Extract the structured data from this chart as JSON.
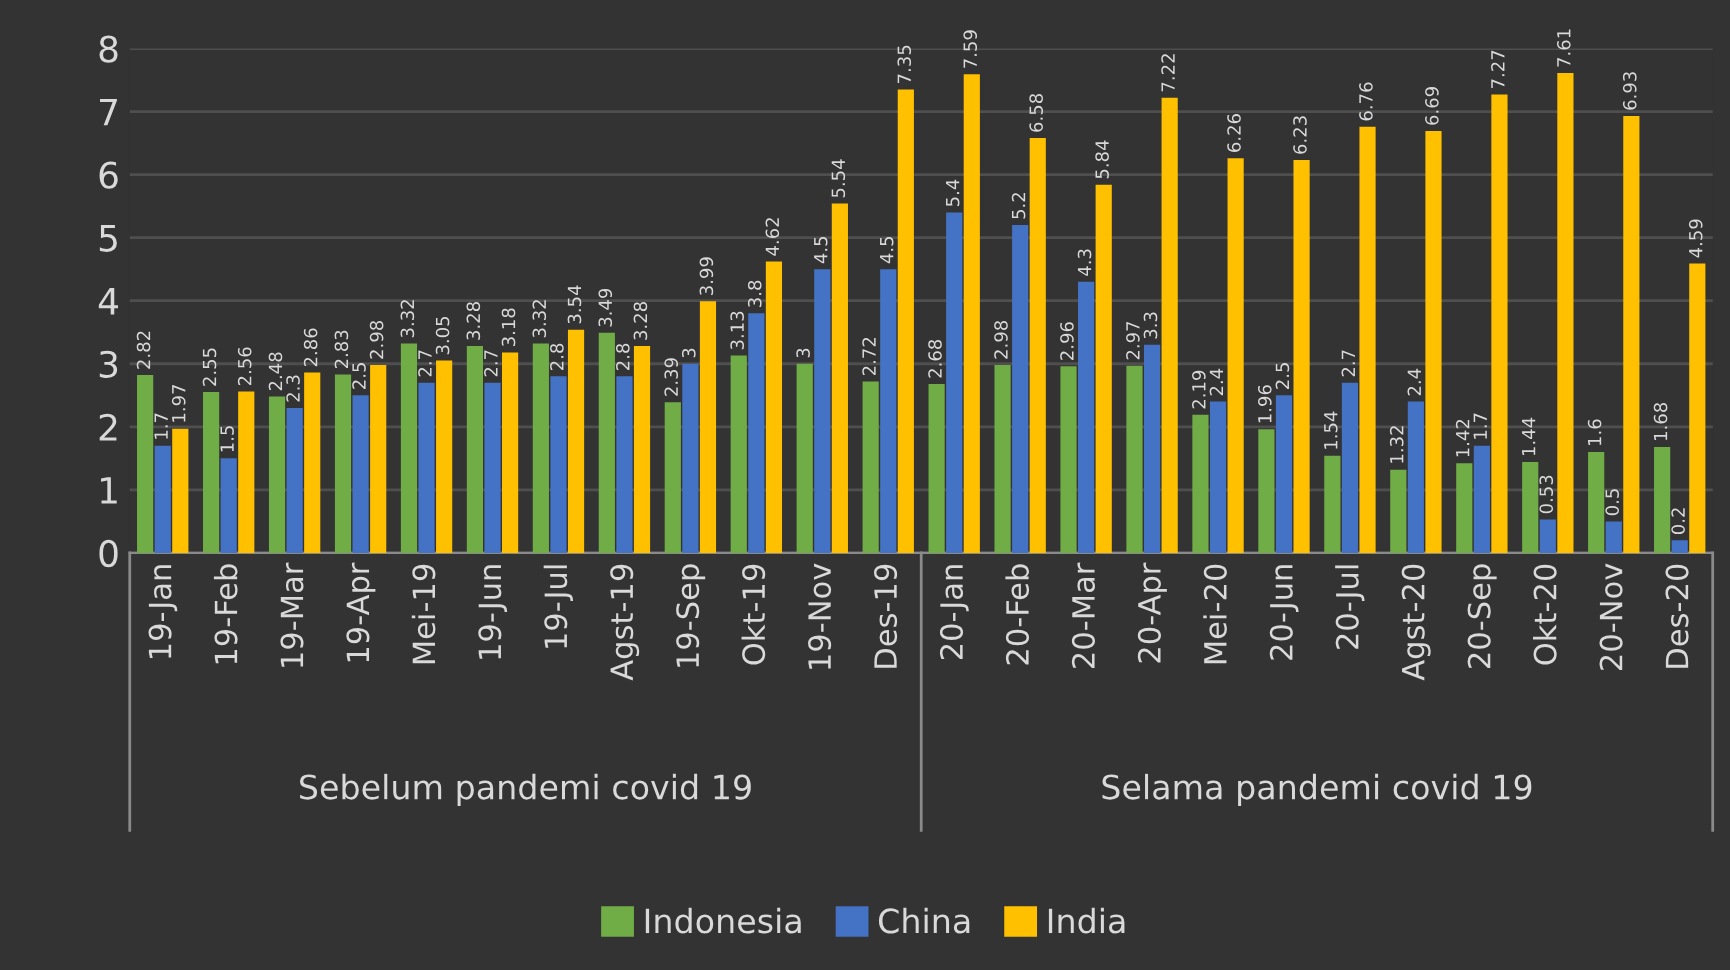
{
  "chart_data": {
    "type": "bar",
    "categories": [
      "19-Jan",
      "19-Feb",
      "19-Mar",
      "19-Apr",
      "Mei-19",
      "19-Jun",
      "19-Jul",
      "Agst-19",
      "19-Sep",
      "Okt-19",
      "19-Nov",
      "Des-19",
      "20-Jan",
      "20-Feb",
      "20-Mar",
      "20-Apr",
      "Mei-20",
      "20-Jun",
      "20-Jul",
      "Agst-20",
      "20-Sep",
      "Okt-20",
      "20-Nov",
      "Des-20"
    ],
    "series": [
      {
        "name": "Indonesia",
        "color": "#70ad47",
        "values": [
          2.82,
          2.55,
          2.48,
          2.83,
          3.32,
          3.28,
          3.32,
          3.49,
          2.39,
          3.13,
          3,
          2.72,
          2.68,
          2.98,
          2.96,
          2.97,
          2.19,
          1.96,
          1.54,
          1.32,
          1.42,
          1.44,
          1.6,
          1.68
        ]
      },
      {
        "name": "China",
        "color": "#4472c4",
        "values": [
          1.7,
          1.5,
          2.3,
          2.5,
          2.7,
          2.7,
          2.8,
          2.8,
          3,
          3.8,
          4.5,
          4.5,
          5.4,
          5.2,
          4.3,
          3.3,
          2.4,
          2.5,
          2.7,
          2.4,
          1.7,
          0.53,
          0.5,
          0.2
        ]
      },
      {
        "name": "India",
        "color": "#ffc000",
        "values": [
          1.97,
          2.56,
          2.86,
          2.98,
          3.05,
          3.18,
          3.54,
          3.28,
          3.99,
          4.62,
          5.54,
          7.35,
          7.59,
          6.58,
          5.84,
          7.22,
          6.26,
          6.23,
          6.76,
          6.69,
          7.27,
          7.61,
          6.93,
          4.59
        ]
      }
    ],
    "annotations": [
      "Sebelum pandemi covid 19",
      "Selama pandemi covid 19"
    ],
    "ylim": [
      0,
      8
    ],
    "yticks": [
      0,
      1,
      2,
      3,
      4,
      5,
      6,
      7,
      8
    ],
    "grid": "y",
    "legend": "bottom",
    "data_labels": true
  }
}
